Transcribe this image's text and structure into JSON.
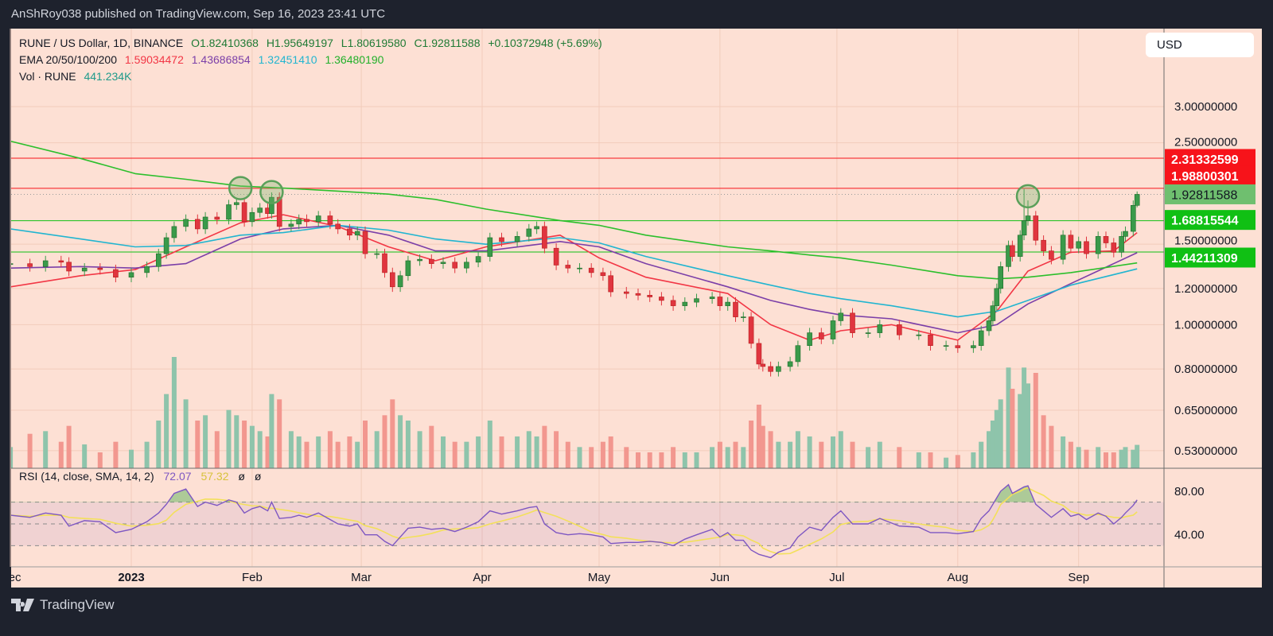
{
  "header": {
    "publish_line": "AnShRoy038 published on TradingView.com, Sep 16, 2023 23:41 UTC"
  },
  "legend": {
    "symbol": "RUNE / US Dollar, 1D, BINANCE",
    "open": "O1.82410368",
    "high": "H1.95649197",
    "low": "L1.80619580",
    "close": "C1.92811588",
    "change": "+0.10372948 (+5.69%)",
    "ema_label": "EMA 20/50/100/200",
    "ema20": "1.59034472",
    "ema50": "1.43686854",
    "ema100": "1.32451410",
    "ema200": "1.36480190",
    "vol_label": "Vol · RUNE",
    "vol_value": "441.234K"
  },
  "rsi_legend": {
    "label": "RSI (14, close, SMA, 14, 2)",
    "value": "72.07",
    "sma": "57.32",
    "extra1": "ø",
    "extra2": "ø"
  },
  "currency_button": "USD",
  "footer": {
    "logo_text": "TradingView"
  },
  "chart_data": {
    "type": "candlestick",
    "scale": "log",
    "price_ticks": [
      "3.00000000",
      "2.50000000",
      "1.50000000",
      "1.20000000",
      "1.00000000",
      "0.80000000",
      "0.65000000",
      "0.53000000"
    ],
    "rsi_ticks": [
      "80.00",
      "40.00"
    ],
    "rsi_levels": [
      70,
      50,
      30
    ],
    "time_ticks": [
      {
        "label": "Dec",
        "date": "2022-12-01"
      },
      {
        "label": "2023",
        "date": "2023-01-01"
      },
      {
        "label": "Feb",
        "date": "2023-02-01"
      },
      {
        "label": "Mar",
        "date": "2023-03-01"
      },
      {
        "label": "Apr",
        "date": "2023-04-01"
      },
      {
        "label": "May",
        "date": "2023-05-01"
      },
      {
        "label": "Jun",
        "date": "2023-06-01"
      },
      {
        "label": "Jul",
        "date": "2023-07-01"
      },
      {
        "label": "Aug",
        "date": "2023-08-01"
      },
      {
        "label": "Sep",
        "date": "2023-09-01"
      }
    ],
    "candle_fields": [
      "date",
      "close",
      "volume_k",
      "rsi"
    ],
    "candles": [
      [
        "2022-12-01",
        1.36,
        400,
        58
      ],
      [
        "2022-12-06",
        1.34,
        650,
        56
      ],
      [
        "2022-12-10",
        1.38,
        700,
        60
      ],
      [
        "2022-12-14",
        1.37,
        500,
        58
      ],
      [
        "2022-12-16",
        1.31,
        800,
        48
      ],
      [
        "2022-12-20",
        1.33,
        450,
        53
      ],
      [
        "2022-12-24",
        1.32,
        300,
        52
      ],
      [
        "2022-12-28",
        1.27,
        500,
        42
      ],
      [
        "2023-01-01",
        1.3,
        350,
        45
      ],
      [
        "2023-01-05",
        1.34,
        500,
        52
      ],
      [
        "2023-01-08",
        1.43,
        900,
        60
      ],
      [
        "2023-01-10",
        1.55,
        1400,
        68
      ],
      [
        "2023-01-12",
        1.64,
        2100,
        78
      ],
      [
        "2023-01-15",
        1.7,
        1300,
        82
      ],
      [
        "2023-01-18",
        1.62,
        900,
        66
      ],
      [
        "2023-01-20",
        1.72,
        1000,
        70
      ],
      [
        "2023-01-23",
        1.7,
        700,
        67
      ],
      [
        "2023-01-26",
        1.83,
        1100,
        72
      ],
      [
        "2023-01-28",
        1.85,
        1000,
        70
      ],
      [
        "2023-01-30",
        1.68,
        900,
        60
      ],
      [
        "2023-02-01",
        1.76,
        800,
        64
      ],
      [
        "2023-02-03",
        1.8,
        700,
        66
      ],
      [
        "2023-02-05",
        1.75,
        600,
        62
      ],
      [
        "2023-02-06",
        1.9,
        1400,
        70
      ],
      [
        "2023-02-08",
        1.64,
        1300,
        55
      ],
      [
        "2023-02-11",
        1.66,
        700,
        56
      ],
      [
        "2023-02-13",
        1.7,
        600,
        58
      ],
      [
        "2023-02-15",
        1.68,
        500,
        56
      ],
      [
        "2023-02-18",
        1.73,
        600,
        60
      ],
      [
        "2023-02-21",
        1.66,
        700,
        54
      ],
      [
        "2023-02-23",
        1.62,
        500,
        50
      ],
      [
        "2023-02-26",
        1.57,
        600,
        48
      ],
      [
        "2023-02-28",
        1.6,
        500,
        50
      ],
      [
        "2023-03-02",
        1.43,
        900,
        40
      ],
      [
        "2023-03-05",
        1.43,
        700,
        40
      ],
      [
        "2023-03-07",
        1.3,
        1000,
        34
      ],
      [
        "2023-03-09",
        1.21,
        1300,
        30
      ],
      [
        "2023-03-11",
        1.28,
        1000,
        38
      ],
      [
        "2023-03-13",
        1.38,
        900,
        46
      ],
      [
        "2023-03-16",
        1.39,
        700,
        47
      ],
      [
        "2023-03-19",
        1.36,
        800,
        45
      ],
      [
        "2023-03-22",
        1.37,
        600,
        46
      ],
      [
        "2023-03-25",
        1.33,
        500,
        43
      ],
      [
        "2023-03-28",
        1.37,
        500,
        47
      ],
      [
        "2023-03-31",
        1.41,
        600,
        52
      ],
      [
        "2023-04-03",
        1.55,
        900,
        62
      ],
      [
        "2023-04-06",
        1.52,
        600,
        59
      ],
      [
        "2023-04-10",
        1.56,
        600,
        62
      ],
      [
        "2023-04-13",
        1.62,
        700,
        65
      ],
      [
        "2023-04-15",
        1.64,
        600,
        66
      ],
      [
        "2023-04-17",
        1.47,
        800,
        50
      ],
      [
        "2023-04-20",
        1.35,
        700,
        42
      ],
      [
        "2023-04-23",
        1.33,
        500,
        40
      ],
      [
        "2023-04-26",
        1.33,
        400,
        41
      ],
      [
        "2023-04-29",
        1.3,
        400,
        40
      ],
      [
        "2023-05-02",
        1.28,
        500,
        38
      ],
      [
        "2023-05-04",
        1.18,
        600,
        32
      ],
      [
        "2023-05-08",
        1.17,
        400,
        33
      ],
      [
        "2023-05-11",
        1.16,
        300,
        33
      ],
      [
        "2023-05-14",
        1.15,
        300,
        34
      ],
      [
        "2023-05-17",
        1.13,
        300,
        33
      ],
      [
        "2023-05-20",
        1.1,
        400,
        30
      ],
      [
        "2023-05-23",
        1.12,
        300,
        36
      ],
      [
        "2023-05-26",
        1.14,
        300,
        40
      ],
      [
        "2023-05-30",
        1.15,
        400,
        45
      ],
      [
        "2023-06-01",
        1.1,
        500,
        38
      ],
      [
        "2023-06-03",
        1.12,
        400,
        42
      ],
      [
        "2023-06-05",
        1.04,
        500,
        35
      ],
      [
        "2023-06-07",
        1.04,
        400,
        35
      ],
      [
        "2023-06-09",
        0.91,
        900,
        26
      ],
      [
        "2023-06-11",
        0.82,
        1200,
        22
      ],
      [
        "2023-06-12",
        0.81,
        800,
        21
      ],
      [
        "2023-06-14",
        0.79,
        700,
        19
      ],
      [
        "2023-06-16",
        0.81,
        500,
        24
      ],
      [
        "2023-06-19",
        0.83,
        500,
        28
      ],
      [
        "2023-06-21",
        0.9,
        700,
        38
      ],
      [
        "2023-06-24",
        0.96,
        600,
        47
      ],
      [
        "2023-06-27",
        0.93,
        500,
        44
      ],
      [
        "2023-06-30",
        1.02,
        600,
        56
      ],
      [
        "2023-07-02",
        1.06,
        700,
        62
      ],
      [
        "2023-07-05",
        0.96,
        500,
        50
      ],
      [
        "2023-07-09",
        0.96,
        400,
        50
      ],
      [
        "2023-07-12",
        1.0,
        500,
        55
      ],
      [
        "2023-07-17",
        0.95,
        400,
        48
      ],
      [
        "2023-07-22",
        0.95,
        300,
        47
      ],
      [
        "2023-07-25",
        0.9,
        300,
        42
      ],
      [
        "2023-07-29",
        0.9,
        200,
        42
      ],
      [
        "2023-08-01",
        0.89,
        250,
        41
      ],
      [
        "2023-08-05",
        0.9,
        300,
        43
      ],
      [
        "2023-08-07",
        0.97,
        500,
        55
      ],
      [
        "2023-08-09",
        1.02,
        700,
        62
      ],
      [
        "2023-08-10",
        1.1,
        900,
        68
      ],
      [
        "2023-08-11",
        1.2,
        1100,
        74
      ],
      [
        "2023-08-12",
        1.34,
        1300,
        80
      ],
      [
        "2023-08-14",
        1.49,
        1900,
        86
      ],
      [
        "2023-08-15",
        1.41,
        1500,
        78
      ],
      [
        "2023-08-17",
        1.57,
        1400,
        82
      ],
      [
        "2023-08-18",
        1.69,
        1900,
        84
      ],
      [
        "2023-08-19",
        1.73,
        1600,
        85
      ],
      [
        "2023-08-21",
        1.53,
        1800,
        68
      ],
      [
        "2023-08-23",
        1.45,
        1000,
        62
      ],
      [
        "2023-08-25",
        1.39,
        800,
        56
      ],
      [
        "2023-08-28",
        1.57,
        600,
        64
      ],
      [
        "2023-08-30",
        1.47,
        500,
        57
      ],
      [
        "2023-09-01",
        1.52,
        400,
        59
      ],
      [
        "2023-09-03",
        1.43,
        350,
        54
      ],
      [
        "2023-09-06",
        1.56,
        400,
        60
      ],
      [
        "2023-09-08",
        1.51,
        300,
        57
      ],
      [
        "2023-09-10",
        1.44,
        300,
        50
      ],
      [
        "2023-09-12",
        1.56,
        350,
        56
      ],
      [
        "2023-09-13",
        1.6,
        400,
        60
      ],
      [
        "2023-09-15",
        1.824,
        350,
        67
      ],
      [
        "2023-09-16",
        1.928,
        441.234,
        72.07
      ]
    ],
    "highs": {
      "2023-08-18": 1.98,
      "2023-08-19": 1.87,
      "2023-09-16": 1.95649197
    },
    "lows": {
      "2023-09-16": 1.8061958
    },
    "ema": [
      {
        "name": "EMA 20",
        "color": "#f23645",
        "points": [
          [
            "2022-12-01",
            1.21
          ],
          [
            "2022-12-19",
            1.28
          ],
          [
            "2023-01-02",
            1.32
          ],
          [
            "2023-01-15",
            1.48
          ],
          [
            "2023-01-29",
            1.67
          ],
          [
            "2023-02-09",
            1.74
          ],
          [
            "2023-02-23",
            1.64
          ],
          [
            "2023-03-08",
            1.48
          ],
          [
            "2023-03-20",
            1.38
          ],
          [
            "2023-04-02",
            1.48
          ],
          [
            "2023-04-21",
            1.57
          ],
          [
            "2023-05-01",
            1.4
          ],
          [
            "2023-05-13",
            1.27
          ],
          [
            "2023-06-03",
            1.17
          ],
          [
            "2023-06-14",
            1.0
          ],
          [
            "2023-06-24",
            0.925
          ],
          [
            "2023-07-02",
            0.97
          ],
          [
            "2023-07-15",
            1.0
          ],
          [
            "2023-08-01",
            0.925
          ],
          [
            "2023-08-11",
            1.07
          ],
          [
            "2023-08-19",
            1.31
          ],
          [
            "2023-08-30",
            1.44
          ],
          [
            "2023-09-10",
            1.45
          ],
          [
            "2023-09-16",
            1.59
          ]
        ]
      },
      {
        "name": "EMA 50",
        "color": "#7b3fa8",
        "points": [
          [
            "2022-12-01",
            1.33
          ],
          [
            "2022-12-19",
            1.34
          ],
          [
            "2023-01-02",
            1.33
          ],
          [
            "2023-01-15",
            1.36
          ],
          [
            "2023-01-29",
            1.54
          ],
          [
            "2023-02-09",
            1.62
          ],
          [
            "2023-02-23",
            1.65
          ],
          [
            "2023-03-08",
            1.57
          ],
          [
            "2023-03-20",
            1.45
          ],
          [
            "2023-04-02",
            1.45
          ],
          [
            "2023-04-21",
            1.52
          ],
          [
            "2023-05-01",
            1.48
          ],
          [
            "2023-05-13",
            1.36
          ],
          [
            "2023-06-03",
            1.21
          ],
          [
            "2023-06-14",
            1.13
          ],
          [
            "2023-06-24",
            1.08
          ],
          [
            "2023-07-02",
            1.05
          ],
          [
            "2023-07-15",
            1.03
          ],
          [
            "2023-08-01",
            0.96
          ],
          [
            "2023-08-11",
            1.0
          ],
          [
            "2023-08-19",
            1.11
          ],
          [
            "2023-08-30",
            1.23
          ],
          [
            "2023-09-16",
            1.437
          ]
        ]
      },
      {
        "name": "EMA 100",
        "color": "#22b5d0",
        "points": [
          [
            "2022-12-01",
            1.62
          ],
          [
            "2022-12-19",
            1.54
          ],
          [
            "2023-01-02",
            1.48
          ],
          [
            "2023-01-15",
            1.49
          ],
          [
            "2023-01-29",
            1.57
          ],
          [
            "2023-02-09",
            1.59
          ],
          [
            "2023-02-23",
            1.65
          ],
          [
            "2023-03-08",
            1.61
          ],
          [
            "2023-03-20",
            1.54
          ],
          [
            "2023-04-02",
            1.5
          ],
          [
            "2023-04-21",
            1.55
          ],
          [
            "2023-05-01",
            1.51
          ],
          [
            "2023-05-13",
            1.41
          ],
          [
            "2023-06-03",
            1.28
          ],
          [
            "2023-06-14",
            1.22
          ],
          [
            "2023-06-24",
            1.17
          ],
          [
            "2023-07-02",
            1.14
          ],
          [
            "2023-07-15",
            1.1
          ],
          [
            "2023-08-01",
            1.04
          ],
          [
            "2023-08-11",
            1.07
          ],
          [
            "2023-08-19",
            1.13
          ],
          [
            "2023-08-30",
            1.22
          ],
          [
            "2023-09-16",
            1.3245
          ]
        ]
      },
      {
        "name": "EMA 200",
        "color": "#2cbf2c",
        "points": [
          [
            "2022-12-01",
            2.52
          ],
          [
            "2022-12-19",
            2.31
          ],
          [
            "2023-01-02",
            2.14
          ],
          [
            "2023-01-15",
            2.08
          ],
          [
            "2023-01-29",
            2.01
          ],
          [
            "2023-02-09",
            1.99
          ],
          [
            "2023-02-23",
            1.96
          ],
          [
            "2023-03-08",
            1.93
          ],
          [
            "2023-03-20",
            1.88
          ],
          [
            "2023-04-02",
            1.79
          ],
          [
            "2023-04-21",
            1.69
          ],
          [
            "2023-05-01",
            1.65
          ],
          [
            "2023-05-13",
            1.57
          ],
          [
            "2023-06-03",
            1.48
          ],
          [
            "2023-06-14",
            1.45
          ],
          [
            "2023-06-24",
            1.42
          ],
          [
            "2023-07-02",
            1.4
          ],
          [
            "2023-07-15",
            1.35
          ],
          [
            "2023-08-01",
            1.28
          ],
          [
            "2023-08-11",
            1.26
          ],
          [
            "2023-08-19",
            1.27
          ],
          [
            "2023-08-30",
            1.3
          ],
          [
            "2023-09-16",
            1.3648
          ]
        ]
      }
    ],
    "levels": [
      {
        "label": "2.31332599",
        "value": 2.31332599,
        "color": "#f7131a",
        "text_color": "#ffffff"
      },
      {
        "label": "1.98800301",
        "value": 1.98800301,
        "color": "#f7131a",
        "text_color": "#ffffff"
      },
      {
        "label": "1.92811588",
        "value": 1.92811588,
        "color": "#6fbf6f",
        "text_color": "#131722",
        "current": true
      },
      {
        "label": "1.68815544",
        "value": 1.68815544,
        "color": "#10c014",
        "text_color": "#ffffff"
      },
      {
        "label": "1.44211309",
        "value": 1.44211309,
        "color": "#10c014",
        "text_color": "#ffffff"
      }
    ],
    "annotations": [
      {
        "type": "circle",
        "date": "2023-01-29",
        "price": 1.99
      },
      {
        "type": "circle",
        "date": "2023-02-06",
        "price": 1.95
      },
      {
        "type": "circle",
        "date": "2023-08-19",
        "price": 1.91
      }
    ],
    "colors": {
      "up": "#3a9a4a",
      "down": "#e0353f",
      "vol_up": "#8ec4ab",
      "vol_down": "#f2978f",
      "rsi": "#7e57c2",
      "rsi_sma": "#f3e05a",
      "background": "#fde0d4"
    }
  }
}
